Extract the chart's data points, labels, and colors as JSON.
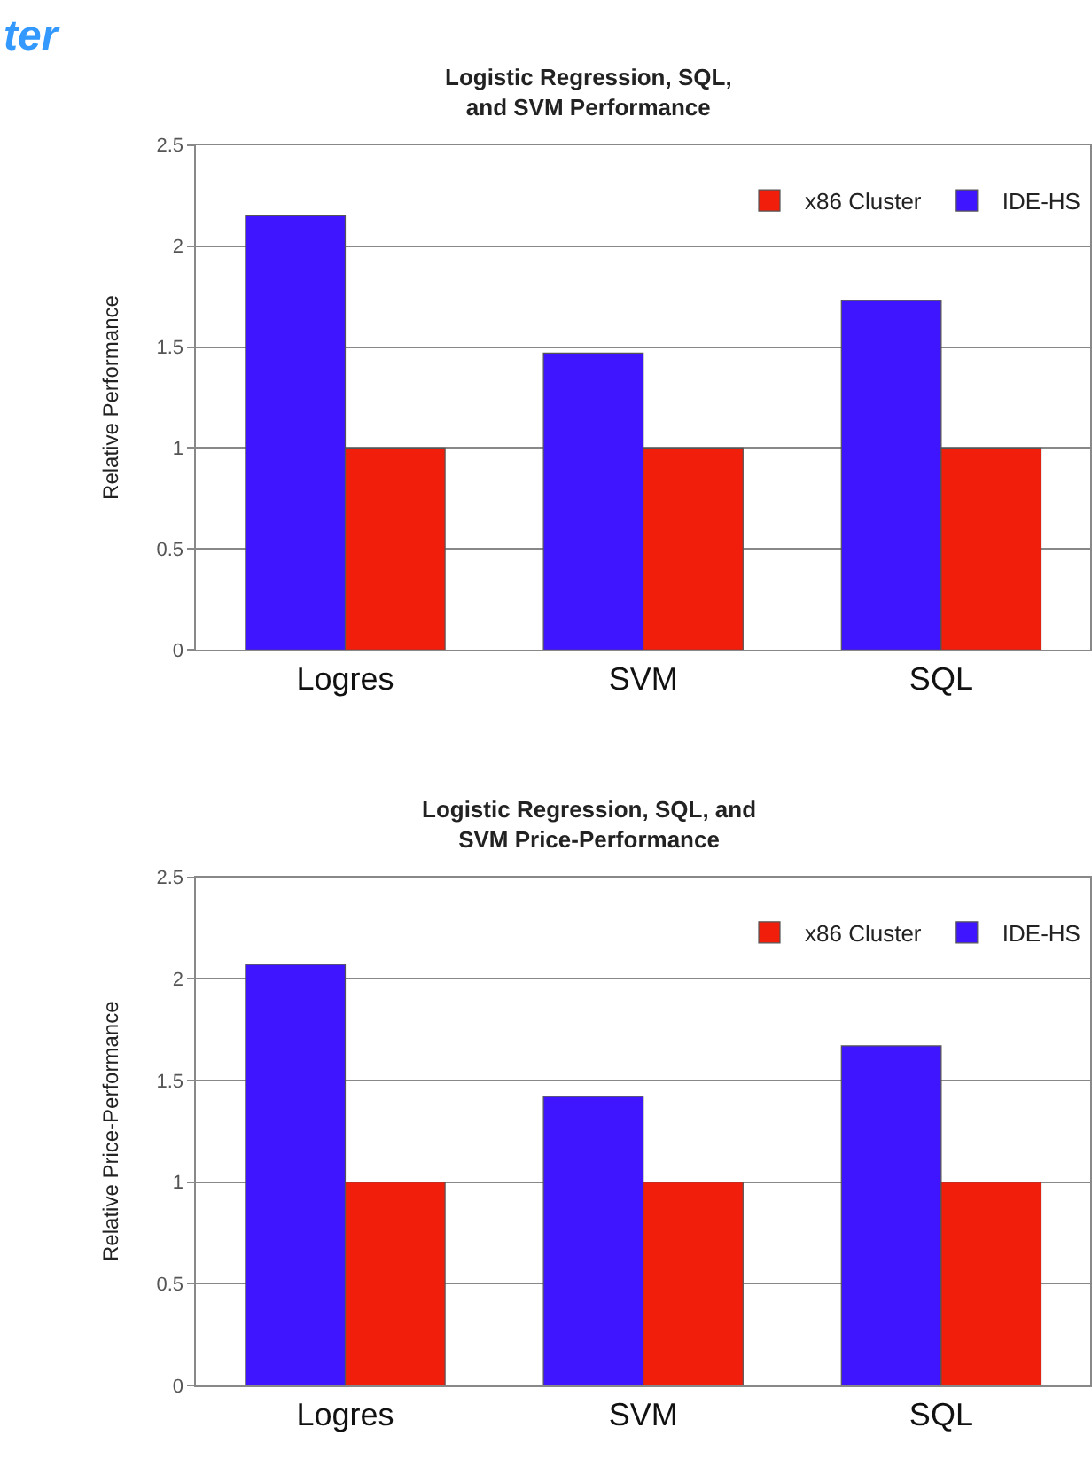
{
  "chart_data": [
    {
      "type": "bar",
      "title": "Logistic Regression, SQL,\nand SVM Performance",
      "ylabel": "Relative Performance",
      "annotations": [
        "ter"
      ],
      "categories": [
        "Logres",
        "SVM",
        "SQL"
      ],
      "series": [
        {
          "name": "IDE-HS",
          "color": "#3f14ff",
          "values": [
            2.15,
            1.47,
            1.73
          ]
        },
        {
          "name": "x86 Cluster",
          "color": "#f01e0a",
          "values": [
            1,
            1,
            1
          ]
        }
      ],
      "ylim": [
        0,
        2.5
      ],
      "yticks": [
        0,
        0.5,
        1,
        1.5,
        2,
        2.5
      ],
      "grid": "y",
      "legend": "top right"
    },
    {
      "type": "bar",
      "title": "Logistic Regression, SQL, and\nSVM Price-Performance",
      "ylabel": "Relative Price-Performance",
      "categories": [
        "Logres",
        "SVM",
        "SQL"
      ],
      "series": [
        {
          "name": "IDE-HS",
          "color": "#3f14ff",
          "values": [
            2.07,
            1.42,
            1.67
          ]
        },
        {
          "name": "x86 Cluster",
          "color": "#f01e0a",
          "values": [
            1,
            1,
            1
          ]
        }
      ],
      "ylim": [
        0,
        2.5
      ],
      "yticks": [
        0,
        0.5,
        1,
        1.5,
        2,
        2.5
      ],
      "grid": "y",
      "legend": "top right"
    }
  ]
}
